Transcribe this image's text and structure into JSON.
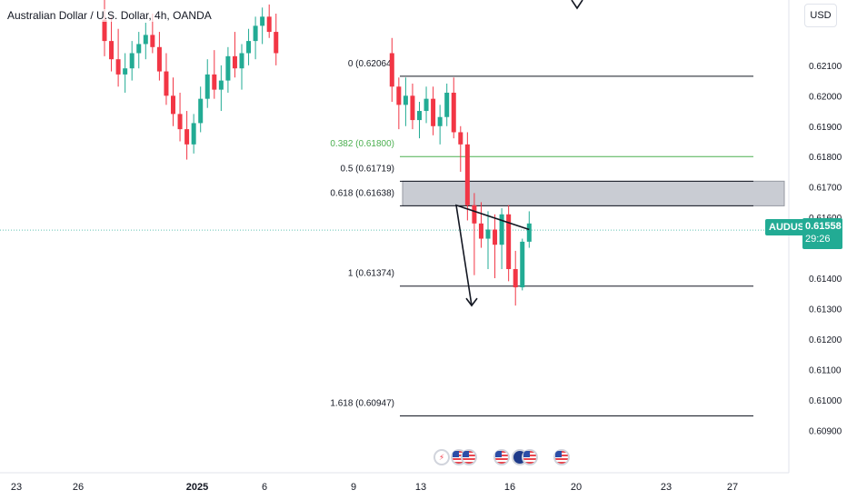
{
  "header": {
    "title": "Australian Dollar / U.S. Dollar, 4h, OANDA",
    "currency_button": "USD"
  },
  "price_label": {
    "symbol": "AUDUSD",
    "price": "0.61558",
    "countdown": "29:26"
  },
  "colors": {
    "bull": "#22ab94",
    "bear": "#f23645",
    "fib_green": "#4caf50",
    "zone": "#c9ccd3",
    "current_line": "#22ab94"
  },
  "chart_data": {
    "type": "candlestick",
    "symbol": "AUDUSD",
    "timeframe": "4h",
    "ylim": [
      0.6085,
      0.6227
    ],
    "y_ticks": [
      "0.62100",
      "0.62000",
      "0.61900",
      "0.61800",
      "0.61700",
      "0.61600",
      "0.61400",
      "0.61300",
      "0.61200",
      "0.61100",
      "0.61000",
      "0.60900"
    ],
    "x_ticks": [
      "23",
      "26",
      "2025",
      "6",
      "9",
      "13",
      "16",
      "20",
      "23",
      "27"
    ],
    "current_price": 0.61558,
    "candles": [
      [
        0.6225,
        0.6235,
        0.6213,
        0.6218
      ],
      [
        0.6218,
        0.6226,
        0.6208,
        0.6212
      ],
      [
        0.6212,
        0.6222,
        0.6203,
        0.6207
      ],
      [
        0.6207,
        0.6214,
        0.6201,
        0.6209
      ],
      [
        0.6209,
        0.6218,
        0.6205,
        0.6214
      ],
      [
        0.6214,
        0.6221,
        0.6209,
        0.6217
      ],
      [
        0.6217,
        0.6224,
        0.6212,
        0.622
      ],
      [
        0.622,
        0.6227,
        0.6214,
        0.6216
      ],
      [
        0.6216,
        0.6221,
        0.6205,
        0.6208
      ],
      [
        0.6208,
        0.6214,
        0.6197,
        0.62
      ],
      [
        0.62,
        0.6206,
        0.619,
        0.6194
      ],
      [
        0.6194,
        0.6201,
        0.6185,
        0.6189
      ],
      [
        0.6189,
        0.6195,
        0.6179,
        0.6184
      ],
      [
        0.6184,
        0.6194,
        0.6181,
        0.6191
      ],
      [
        0.6191,
        0.6203,
        0.6188,
        0.6199
      ],
      [
        0.6199,
        0.6212,
        0.6196,
        0.6207
      ],
      [
        0.6207,
        0.6215,
        0.6199,
        0.6202
      ],
      [
        0.6202,
        0.621,
        0.6195,
        0.6205
      ],
      [
        0.6205,
        0.6216,
        0.6201,
        0.6213
      ],
      [
        0.6213,
        0.6221,
        0.6206,
        0.6209
      ],
      [
        0.6209,
        0.6217,
        0.6202,
        0.6214
      ],
      [
        0.6214,
        0.6222,
        0.621,
        0.6218
      ],
      [
        0.6218,
        0.6226,
        0.6212,
        0.6223
      ],
      [
        0.6223,
        0.6229,
        0.6217,
        0.6226
      ],
      [
        0.6226,
        0.623,
        0.6219,
        0.6221
      ],
      [
        0.6221,
        0.6227,
        0.621,
        0.6214
      ],
      [
        0.6214,
        0.6219,
        0.6198,
        0.6203
      ],
      [
        0.6203,
        0.6206,
        0.6189,
        0.6197
      ],
      [
        0.6197,
        0.6206,
        0.619,
        0.62
      ],
      [
        0.62,
        0.6204,
        0.6189,
        0.6192
      ],
      [
        0.6192,
        0.6198,
        0.6186,
        0.6195
      ],
      [
        0.6195,
        0.6203,
        0.6191,
        0.6199
      ],
      [
        0.6199,
        0.6203,
        0.6187,
        0.619
      ],
      [
        0.619,
        0.6197,
        0.6184,
        0.6193
      ],
      [
        0.6193,
        0.6204,
        0.619,
        0.6201
      ],
      [
        0.6201,
        0.6206,
        0.6186,
        0.6188
      ],
      [
        0.6188,
        0.619,
        0.6175,
        0.6184
      ],
      [
        0.6184,
        0.6188,
        0.6159,
        0.6164
      ],
      [
        0.6164,
        0.6168,
        0.6141,
        0.6158
      ],
      [
        0.6158,
        0.6165,
        0.615,
        0.6153
      ],
      [
        0.6153,
        0.6162,
        0.6143,
        0.6156
      ],
      [
        0.6156,
        0.6161,
        0.614,
        0.6151
      ],
      [
        0.6151,
        0.6163,
        0.6143,
        0.6161
      ],
      [
        0.6161,
        0.6164,
        0.6139,
        0.6143
      ],
      [
        0.6143,
        0.6149,
        0.6131,
        0.6137
      ],
      [
        0.6137,
        0.6153,
        0.6136,
        0.6152
      ],
      [
        0.6152,
        0.6162,
        0.615,
        0.6158
      ]
    ],
    "fibonacci": [
      {
        "label": "0 (0.62064)",
        "value": 0.62064,
        "color": "#131722"
      },
      {
        "label": "0.382 (0.61800)",
        "value": 0.618,
        "color": "#4caf50"
      },
      {
        "label": "0.5 (0.61719)",
        "value": 0.61719,
        "color": "#131722"
      },
      {
        "label": "0.618 (0.61638)",
        "value": 0.61638,
        "color": "#131722"
      },
      {
        "label": "1 (0.61374)",
        "value": 0.61374,
        "color": "#131722"
      },
      {
        "label": "1.618 (0.60947)",
        "value": 0.60947,
        "color": "#131722"
      }
    ],
    "zone": {
      "top": 0.61719,
      "bottom": 0.61638
    },
    "projection": [
      [
        0.6156
      ],
      [
        0.6164
      ],
      [
        0.6131
      ]
    ],
    "events": [
      "earnings",
      "us",
      "us",
      "us",
      "au",
      "us",
      "us"
    ]
  }
}
